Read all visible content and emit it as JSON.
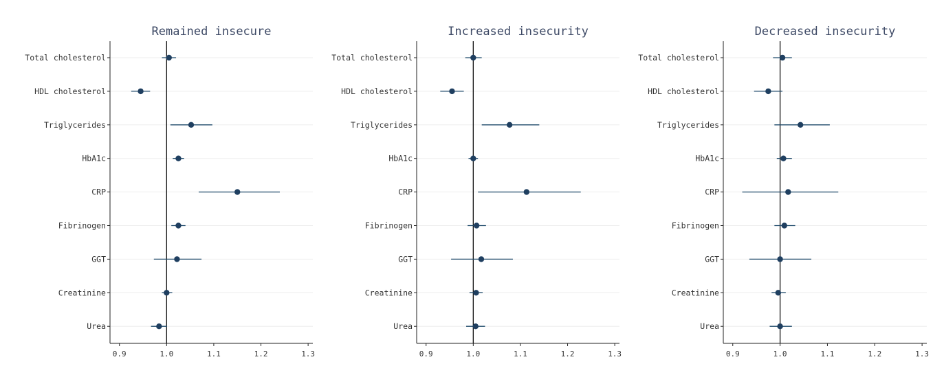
{
  "chart_data": [
    {
      "type": "scatter",
      "title": "Remained insecure",
      "categories": [
        "Total cholesterol",
        "HDL cholesterol",
        "Triglycerides",
        "HbA1c",
        "CRP",
        "Fibrinogen",
        "GGT",
        "Creatinine",
        "Urea"
      ],
      "estimate": [
        1.005,
        0.945,
        1.052,
        1.025,
        1.15,
        1.025,
        1.022,
        1.0,
        0.984
      ],
      "ci_low": [
        0.99,
        0.925,
        1.008,
        1.013,
        1.068,
        1.01,
        0.973,
        0.99,
        0.967
      ],
      "ci_high": [
        1.02,
        0.965,
        1.097,
        1.037,
        1.24,
        1.04,
        1.074,
        1.012,
        1.001
      ],
      "reference_line": 1.0,
      "xlim": [
        0.88,
        1.31
      ],
      "xticks": [
        "0.9",
        "1.0",
        "1.1",
        "1.2",
        "1.3"
      ],
      "grid": true
    },
    {
      "type": "scatter",
      "title": "Increased insecurity",
      "categories": [
        "Total cholesterol",
        "HDL cholesterol",
        "Triglycerides",
        "HbA1c",
        "CRP",
        "Fibrinogen",
        "GGT",
        "Creatinine",
        "Urea"
      ],
      "estimate": [
        1.0,
        0.955,
        1.077,
        1.0,
        1.113,
        1.007,
        1.017,
        1.006,
        1.005
      ],
      "ci_low": [
        0.983,
        0.93,
        1.018,
        0.99,
        1.01,
        0.988,
        0.953,
        0.992,
        0.985
      ],
      "ci_high": [
        1.018,
        0.98,
        1.14,
        1.01,
        1.228,
        1.027,
        1.084,
        1.02,
        1.025
      ],
      "reference_line": 1.0,
      "xlim": [
        0.88,
        1.31
      ],
      "xticks": [
        "0.9",
        "1.0",
        "1.1",
        "1.2",
        "1.3"
      ],
      "grid": true
    },
    {
      "type": "scatter",
      "title": "Decreased insecurity",
      "categories": [
        "Total cholesterol",
        "HDL cholesterol",
        "Triglycerides",
        "HbA1c",
        "CRP",
        "Fibrinogen",
        "GGT",
        "Creatinine",
        "Urea"
      ],
      "estimate": [
        1.005,
        0.975,
        1.043,
        1.007,
        1.017,
        1.009,
        1.0,
        0.996,
        1.0
      ],
      "ci_low": [
        0.985,
        0.945,
        0.988,
        0.993,
        0.92,
        0.988,
        0.935,
        0.982,
        0.978
      ],
      "ci_high": [
        1.025,
        1.005,
        1.105,
        1.025,
        1.123,
        1.032,
        1.066,
        1.012,
        1.025
      ],
      "reference_line": 1.0,
      "xlim": [
        0.88,
        1.31
      ],
      "xticks": [
        "0.9",
        "1.0",
        "1.1",
        "1.2",
        "1.3"
      ],
      "grid": true
    }
  ]
}
